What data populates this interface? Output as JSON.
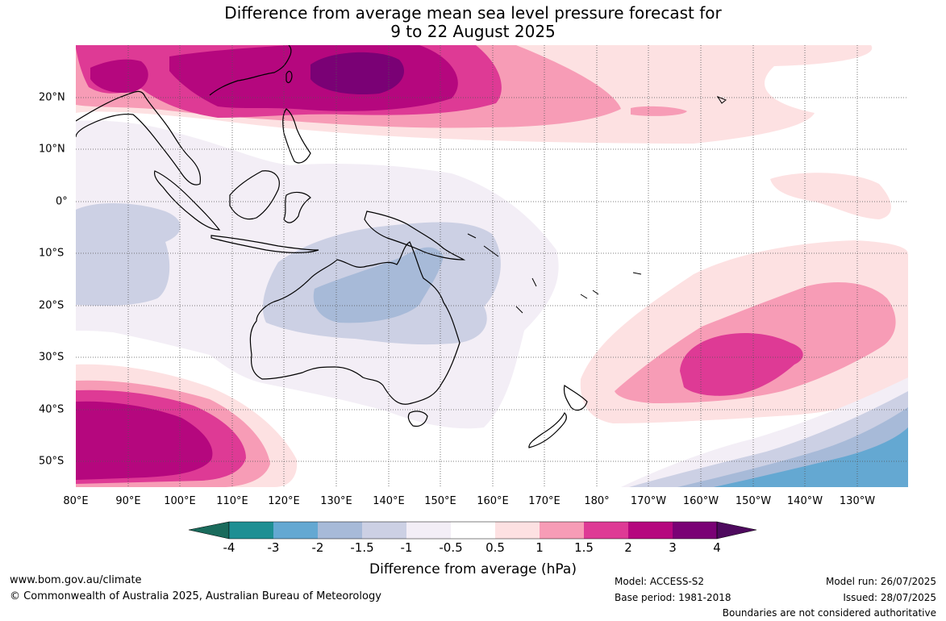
{
  "title_line1": "Difference from average mean sea level pressure forecast for",
  "title_line2": "9 to 22 August 2025",
  "lon_ticks": [
    "80°E",
    "90°E",
    "100°E",
    "110°E",
    "120°E",
    "130°E",
    "140°E",
    "150°E",
    "160°E",
    "170°E",
    "180°",
    "170°W",
    "160°W",
    "150°W",
    "140°W",
    "130°W"
  ],
  "lat_ticks": [
    "20°N",
    "10°N",
    "0°",
    "10°S",
    "20°S",
    "30°S",
    "40°S",
    "50°S"
  ],
  "colorbar": {
    "title": "Difference from average (hPa)",
    "labels": [
      "-4",
      "-3",
      "-2",
      "-1.5",
      "-1",
      "-0.5",
      "0.5",
      "1",
      "1.5",
      "2",
      "3",
      "4"
    ],
    "colors": [
      "#1a6b5c",
      "#1e8f93",
      "#64a8d2",
      "#a7bad8",
      "#ccd0e4",
      "#f3eef6",
      "#ffffff",
      "#fde1e2",
      "#f79cb6",
      "#de3a95",
      "#b5077e",
      "#7a0175",
      "#4e0a5e"
    ]
  },
  "footer": {
    "website": "www.bom.gov.au/climate",
    "copyright": "© Commonwealth of Australia 2025, Australian Bureau of Meteorology",
    "model": "Model: ACCESS-S2",
    "base_period": "Base period: 1981-2018",
    "model_run": "Model run: 26/07/2025",
    "issued": "Issued: 28/07/2025",
    "disclaimer": "Boundaries are not considered authoritative"
  }
}
